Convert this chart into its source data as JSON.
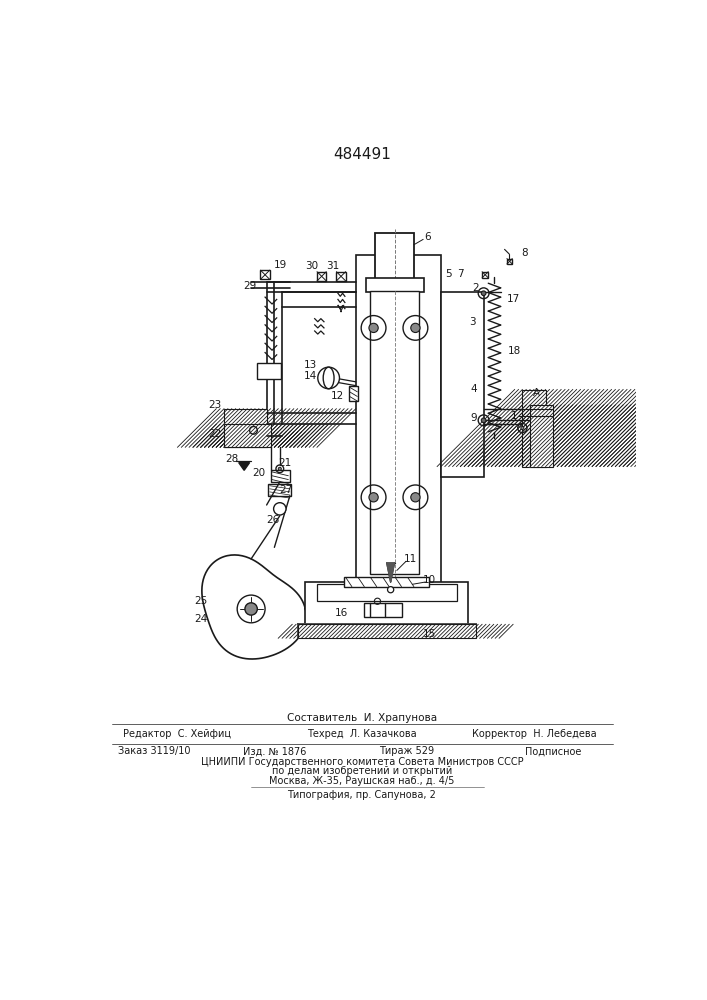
{
  "title": "484491",
  "bg_color": "#ffffff",
  "line_color": "#1a1a1a",
  "footer_line1": "Составитель  И. Храпунова",
  "footer_line2_left": "Редактор  С. Хейфиц",
  "footer_line2_mid": "Техред  Л. Казачкова",
  "footer_line2_right": "Корректор  Н. Лебедева",
  "footer_line3_left": "Заказ 3119/10",
  "footer_line3_mid1": "Изд. № 1876",
  "footer_line3_mid2": "Тираж 529",
  "footer_line3_right": "Подписное",
  "footer_line4": "ЦНИИПИ Государственного комитета Совета Министров СССР",
  "footer_line5": "по делам изобретений и открытий",
  "footer_line6": "Москва, Ж-35, Раушская наб., д. 4/5",
  "footer_line7": "Типография, пр. Сапунова, 2"
}
